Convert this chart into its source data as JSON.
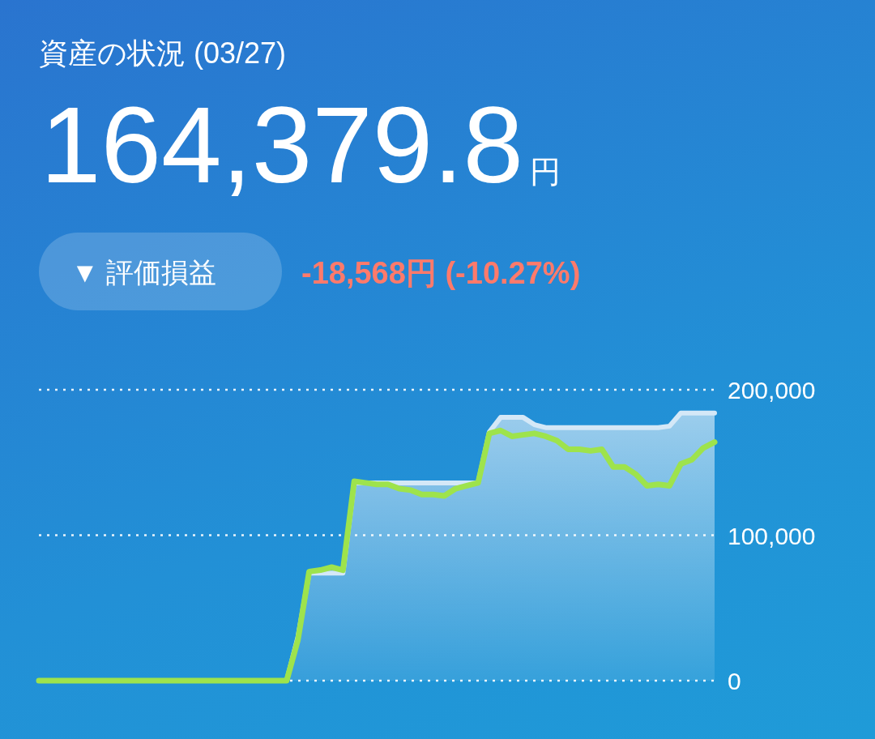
{
  "chart_data": {
    "type": "line",
    "title": "資産の状況 (03/27)",
    "subtitle": "164,379.8円",
    "annotations": [
      "▼ 評価損益",
      "-18,568円 (-10.27%)"
    ],
    "categories": [
      null,
      null,
      null,
      null,
      null,
      null,
      null,
      null,
      null,
      null,
      null,
      null,
      null,
      null,
      null,
      null,
      null,
      null,
      null,
      null,
      null,
      null,
      null,
      null,
      null,
      null,
      null,
      null,
      null,
      null,
      null,
      null,
      null,
      null,
      null,
      null,
      null,
      null,
      null,
      null,
      null,
      null,
      null,
      null,
      null,
      null,
      null,
      null,
      null,
      null,
      null,
      null,
      null,
      null,
      null,
      null,
      null,
      null,
      null,
      null,
      null
    ],
    "series": [
      {
        "type": "area",
        "color": "#d4e8f7",
        "values": [
          0,
          0,
          0,
          0,
          0,
          0,
          0,
          0,
          0,
          0,
          0,
          0,
          0,
          0,
          0,
          0,
          0,
          0,
          0,
          0,
          0,
          0,
          0,
          30000,
          74000,
          74000,
          74000,
          74000,
          136000,
          136000,
          136000,
          136000,
          136000,
          136000,
          136000,
          136000,
          136000,
          136000,
          136000,
          136000,
          171000,
          181000,
          181000,
          181000,
          176000,
          174000,
          174000,
          174000,
          174000,
          174000,
          174000,
          174000,
          174000,
          174000,
          174000,
          174000,
          175000,
          184000,
          184000,
          184000,
          184000
        ]
      },
      {
        "color": "#9ee34c",
        "values": [
          0,
          0,
          0,
          0,
          0,
          0,
          0,
          0,
          0,
          0,
          0,
          0,
          0,
          0,
          0,
          0,
          0,
          0,
          0,
          0,
          0,
          0,
          0,
          28000,
          75000,
          76000,
          78000,
          76000,
          137000,
          136000,
          135000,
          135000,
          132000,
          131000,
          128000,
          128000,
          127000,
          132000,
          134000,
          136000,
          170000,
          172000,
          168000,
          169000,
          170000,
          168000,
          165000,
          159000,
          159000,
          158000,
          159000,
          147000,
          147000,
          142000,
          134000,
          135000,
          134000,
          149000,
          152000,
          160000,
          164000
        ]
      }
    ],
    "ylim": [
      0,
      200000
    ],
    "yticks": [
      0,
      {
        "value": 100000,
        "label": "100,000"
      },
      {
        "value": 200000,
        "label": "200,000"
      }
    ],
    "grid": "y"
  }
}
